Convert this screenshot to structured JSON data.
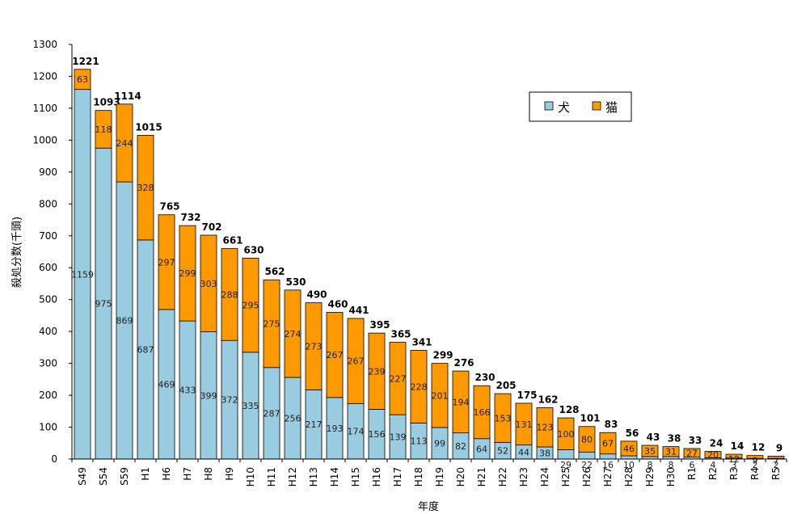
{
  "chart_data": {
    "type": "bar",
    "stacked": true,
    "title": "",
    "xlabel": "年度",
    "ylabel": "殺処分数(千頭)",
    "ylim": [
      0,
      1300
    ],
    "ytick_step": 100,
    "grid": false,
    "legend_position": "top-right",
    "categories": [
      "S49",
      "S54",
      "S59",
      "H1",
      "H6",
      "H7",
      "H8",
      "H9",
      "H10",
      "H11",
      "H12",
      "H13",
      "H14",
      "H15",
      "H16",
      "H17",
      "H18",
      "H19",
      "H20",
      "H21",
      "H22",
      "H23",
      "H24",
      "H25",
      "H26",
      "H27",
      "H28",
      "H29",
      "H30",
      "R1",
      "R2",
      "R3",
      "R4",
      "R5"
    ],
    "series": [
      {
        "name": "犬",
        "color": "#99cce0",
        "values": [
          1159,
          975,
          869,
          687,
          469,
          433,
          399,
          372,
          335,
          287,
          256,
          217,
          193,
          174,
          156,
          139,
          113,
          99,
          82,
          64,
          52,
          44,
          38,
          29,
          22,
          16,
          10,
          8,
          8,
          6,
          4,
          3,
          2,
          2
        ]
      },
      {
        "name": "猫",
        "color": "#ff9900",
        "values": [
          63,
          118,
          244,
          328,
          297,
          299,
          303,
          288,
          295,
          275,
          274,
          273,
          267,
          267,
          239,
          227,
          228,
          201,
          194,
          166,
          153,
          131,
          123,
          100,
          80,
          67,
          46,
          35,
          31,
          27,
          20,
          12,
          9,
          7
        ]
      }
    ],
    "totals": [
      1221,
      1093,
      1114,
      1015,
      765,
      732,
      702,
      661,
      630,
      562,
      530,
      490,
      460,
      441,
      395,
      365,
      341,
      299,
      276,
      230,
      205,
      175,
      162,
      128,
      101,
      83,
      56,
      43,
      38,
      33,
      24,
      14,
      12,
      9
    ]
  }
}
